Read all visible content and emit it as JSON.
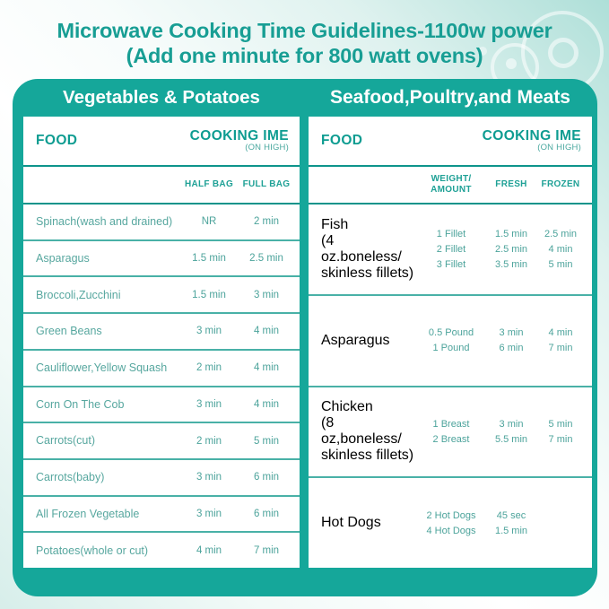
{
  "title": {
    "line1": "Microwave Cooking Time Guidelines-1100w power",
    "line2": "(Add one minute for 800 watt ovens)"
  },
  "theme": {
    "teal_band": "#15A79A",
    "title_text": "#189E94",
    "header_text": "#0E9C91",
    "body_text": "#57A79F",
    "divider": "#49B1A7",
    "panel_bg": "#FFFFFF"
  },
  "left_panel": {
    "title": "Vegetables & Potatoes",
    "food_header": "FOOD",
    "cooking_header": "COOKING IME",
    "cooking_note": "(ON HIGH)",
    "columns": [
      "HALF BAG",
      "FULL BAG"
    ],
    "rows": [
      {
        "food": "Spinach(wash and drained)",
        "half_bag": "NR",
        "full_bag": "2 min"
      },
      {
        "food": "Asparagus",
        "half_bag": "1.5 min",
        "full_bag": "2.5 min"
      },
      {
        "food": "Broccoli,Zucchini",
        "half_bag": "1.5 min",
        "full_bag": "3 min"
      },
      {
        "food": "Green Beans",
        "half_bag": "3 min",
        "full_bag": "4 min"
      },
      {
        "food": "Cauliflower,Yellow Squash",
        "half_bag": "2 min",
        "full_bag": "4 min"
      },
      {
        "food": "Corn On The Cob",
        "half_bag": "3 min",
        "full_bag": "4 min"
      },
      {
        "food": "Carrots(cut)",
        "half_bag": "2 min",
        "full_bag": "5 min"
      },
      {
        "food": "Carrots(baby)",
        "half_bag": "3 min",
        "full_bag": "6 min"
      },
      {
        "food": "All Frozen Vegetable",
        "half_bag": "3 min",
        "full_bag": "6 min"
      },
      {
        "food": "Potatoes(whole or cut)",
        "half_bag": "4 min",
        "full_bag": "7 min"
      }
    ]
  },
  "right_panel": {
    "title": "Seafood,Poultry,and Meats",
    "food_header": "FOOD",
    "cooking_header": "COOKING IME",
    "cooking_note": "(ON HIGH)",
    "columns": {
      "weight_line1": "WEIGHT/",
      "weight_line2": "AMOUNT",
      "fresh": "FRESH",
      "frozen": "FROZEN"
    },
    "sections": [
      {
        "food_lines": [
          "Fish",
          "(4 oz.boneless/",
          "skinless fillets)"
        ],
        "rows": [
          {
            "amount": "1 Fillet",
            "fresh": "1.5 min",
            "frozen": "2.5 min"
          },
          {
            "amount": "2 Fillet",
            "fresh": "2.5 min",
            "frozen": "4 min"
          },
          {
            "amount": "3 Fillet",
            "fresh": "3.5 min",
            "frozen": "5 min"
          }
        ]
      },
      {
        "food_lines": [
          "Asparagus"
        ],
        "rows": [
          {
            "amount": "0.5 Pound",
            "fresh": "3 min",
            "frozen": "4 min"
          },
          {
            "amount": "1 Pound",
            "fresh": "6 min",
            "frozen": "7 min"
          }
        ]
      },
      {
        "food_lines": [
          "Chicken",
          "(8 oz,boneless/",
          "skinless fillets)"
        ],
        "rows": [
          {
            "amount": "1 Breast",
            "fresh": "3 min",
            "frozen": "5 min"
          },
          {
            "amount": "2 Breast",
            "fresh": "5.5 min",
            "frozen": "7 min"
          }
        ]
      },
      {
        "food_lines": [
          "Hot Dogs"
        ],
        "rows": [
          {
            "amount": "2 Hot Dogs",
            "fresh": "45 sec",
            "frozen": ""
          },
          {
            "amount": "4 Hot Dogs",
            "fresh": "1.5 min",
            "frozen": ""
          }
        ]
      }
    ]
  }
}
